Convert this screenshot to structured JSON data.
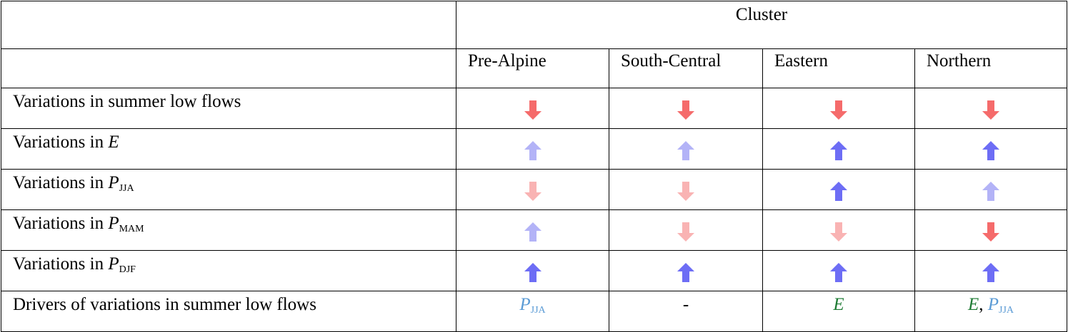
{
  "header": {
    "group": "Cluster",
    "columns": [
      "Pre-Alpine",
      "South-Central",
      "Eastern",
      "Northern"
    ]
  },
  "rows": [
    {
      "label": "Variations in summer low flows"
    },
    {
      "label": "Variations in ",
      "symbol": "E"
    },
    {
      "label": "Variations in ",
      "symbol": "P",
      "subscript": "JJA"
    },
    {
      "label": "Variations in ",
      "symbol": "P",
      "subscript": "MAM"
    },
    {
      "label": "Variations in ",
      "symbol": "P",
      "subscript": "DJF"
    }
  ],
  "drivers": {
    "label": "Drivers of variations in summer low flows",
    "cells": [
      {
        "symbol": "P",
        "subscript": "JJA"
      },
      {
        "text": "-"
      },
      {
        "symbol": "E"
      },
      {
        "first": "E",
        "separator": ", ",
        "symbol": "P",
        "subscript": "JJA"
      }
    ]
  }
}
